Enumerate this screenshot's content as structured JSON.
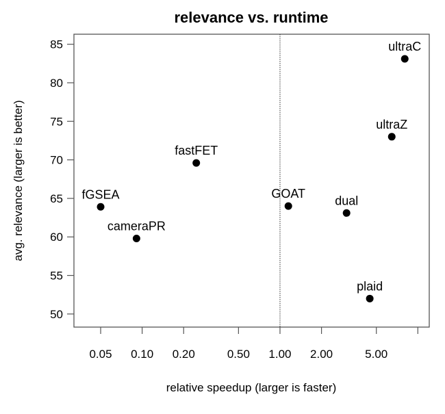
{
  "chart_data": {
    "type": "scatter",
    "title": "relevance vs. runtime",
    "xlabel": "relative speedup (larger is faster)",
    "ylabel": "avg. relevance (larger is better)",
    "x_scale": "log",
    "xlim": [
      0.032,
      12.1
    ],
    "ylim": [
      48.3,
      86.3
    ],
    "x_ticks": [
      0.05,
      0.1,
      0.2,
      0.5,
      1,
      2,
      5,
      10
    ],
    "x_tick_labels": [
      "0.05",
      "0.10",
      "0.20",
      "0.50",
      "1.00",
      "2.00",
      "5.00",
      ""
    ],
    "y_ticks": [
      50,
      55,
      60,
      65,
      70,
      75,
      80,
      85
    ],
    "y_tick_labels": [
      "50",
      "55",
      "60",
      "65",
      "70",
      "75",
      "80",
      "85"
    ],
    "reference_line": {
      "x": 1,
      "style": "dotted"
    },
    "grid": false,
    "points": [
      {
        "label": "fGSEA",
        "x": 0.05,
        "y": 63.9
      },
      {
        "label": "cameraPR",
        "x": 0.091,
        "y": 59.8
      },
      {
        "label": "fastFET",
        "x": 0.247,
        "y": 69.6
      },
      {
        "label": "GOAT",
        "x": 1.15,
        "y": 64.0
      },
      {
        "label": "dual",
        "x": 3.04,
        "y": 63.1
      },
      {
        "label": "plaid",
        "x": 4.48,
        "y": 52.0
      },
      {
        "label": "ultraZ",
        "x": 6.47,
        "y": 73.0
      },
      {
        "label": "ultraC",
        "x": 8.04,
        "y": 83.1
      }
    ],
    "point_color": "#000000"
  }
}
